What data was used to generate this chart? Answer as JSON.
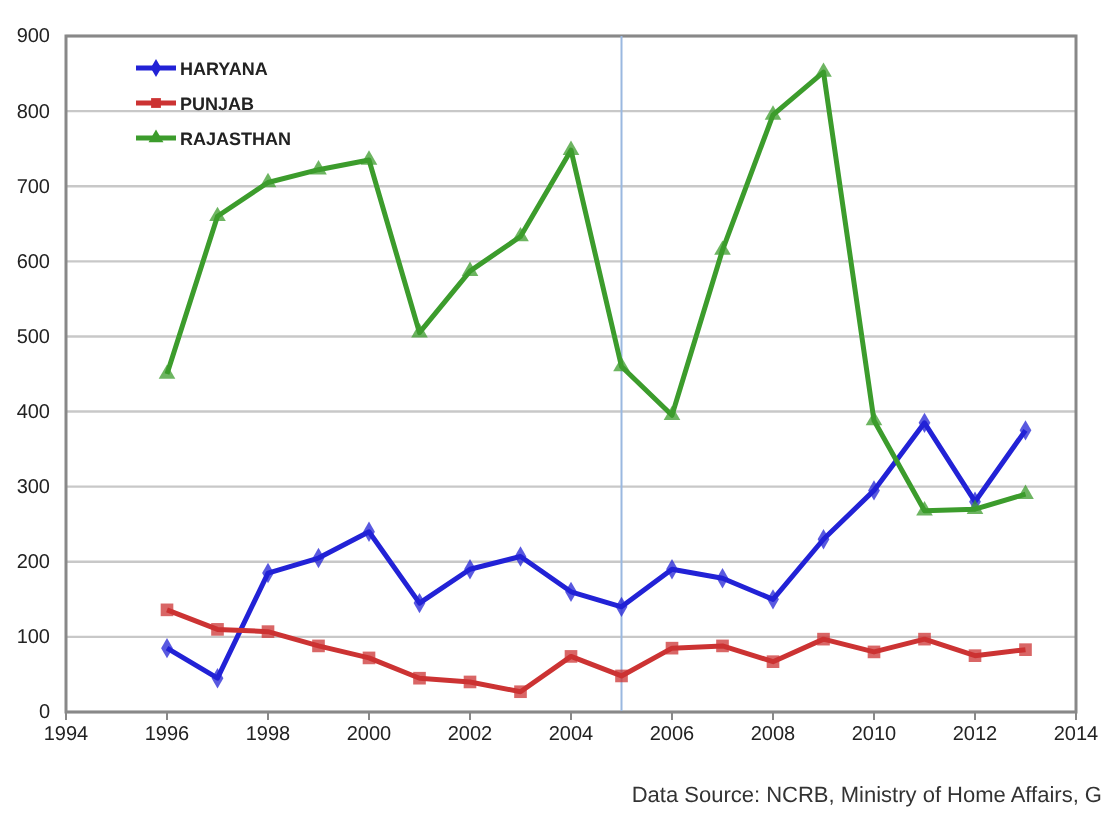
{
  "chart_data": {
    "type": "line",
    "x": [
      1996,
      1997,
      1998,
      1999,
      2000,
      2001,
      2002,
      2003,
      2004,
      2005,
      2006,
      2007,
      2008,
      2009,
      2010,
      2011,
      2012,
      2013
    ],
    "series": [
      {
        "name": "HARYANA",
        "color": "#2222d6",
        "marker": "diamond",
        "values": [
          85,
          45,
          185,
          205,
          240,
          145,
          190,
          207,
          160,
          140,
          190,
          178,
          150,
          230,
          295,
          385,
          280,
          375
        ]
      },
      {
        "name": "PUNJAB",
        "color": "#cc3333",
        "marker": "square",
        "values": [
          136,
          110,
          107,
          88,
          72,
          45,
          40,
          27,
          74,
          48,
          85,
          88,
          67,
          97,
          80,
          97,
          75,
          83
        ]
      },
      {
        "name": "RAJASTHAN",
        "color": "#3c9c2c",
        "marker": "triangle",
        "values": [
          450,
          660,
          705,
          722,
          735,
          505,
          587,
          633,
          748,
          460,
          395,
          615,
          795,
          852,
          388,
          268,
          270,
          290
        ]
      }
    ],
    "xlim": [
      1994,
      2014
    ],
    "xticks": [
      1994,
      1996,
      1998,
      2000,
      2002,
      2004,
      2006,
      2008,
      2010,
      2012,
      2014
    ],
    "ylim": [
      0,
      900
    ],
    "yticks": [
      0,
      100,
      200,
      300,
      400,
      500,
      600,
      700,
      800,
      900
    ],
    "grid": "y",
    "legend": "top left",
    "ref_lines": [
      {
        "axis": "x",
        "value": 2005,
        "color": "#9ab8e0"
      }
    ],
    "annotations": [
      "Data Source: NCRB, Ministry of Home Affairs, G"
    ]
  }
}
